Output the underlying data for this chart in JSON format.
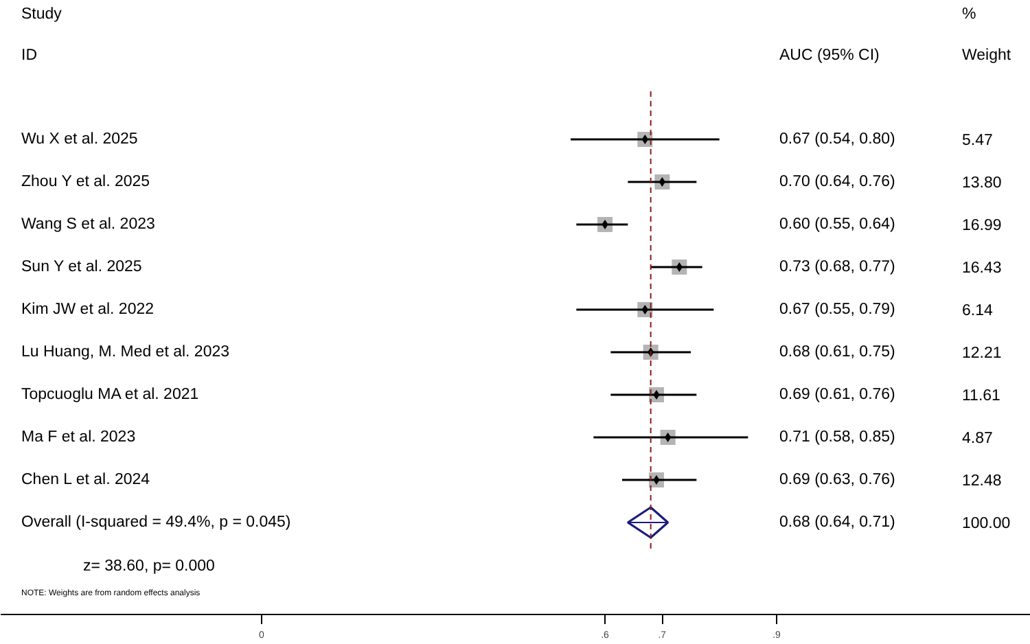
{
  "chart_data": {
    "type": "scatter",
    "orientation": "horizontal",
    "categories": [
      "Wu X et al. 2025",
      "Zhou Y et al. 2025",
      "Wang S et al. 2023",
      "Sun Y et al. 2025",
      "Kim JW  et al. 2022",
      "Lu Huang, M. Med et al. 2023",
      "Topcuoglu MA et al. 2021",
      "Ma F et al. 2023",
      "Chen L et al. 2024",
      "Overall  (I-squared = 49.4%, p = 0.045)"
    ],
    "series": [
      {
        "color": "#b4b4b4",
        "marker": "square",
        "values": [
          0.67,
          0.7,
          0.6,
          0.73,
          0.67,
          0.68,
          0.69,
          0.71,
          0.69,
          null
        ],
        "errors": [
          [
            0.54,
            0.8
          ],
          [
            0.64,
            0.76
          ],
          [
            0.55,
            0.64
          ],
          [
            0.68,
            0.77
          ],
          [
            0.55,
            0.79
          ],
          [
            0.61,
            0.75
          ],
          [
            0.61,
            0.76
          ],
          [
            0.58,
            0.85
          ],
          [
            0.63,
            0.76
          ],
          null
        ]
      },
      {
        "color": "#1a1a80",
        "marker": "diamond",
        "values": [
          null,
          null,
          null,
          null,
          null,
          null,
          null,
          null,
          null,
          0.68
        ],
        "errors": [
          null,
          null,
          null,
          null,
          null,
          null,
          null,
          null,
          null,
          [
            0.64,
            0.71
          ]
        ]
      }
    ],
    "xlim": [
      -0.456,
      1.344
    ],
    "xticks": [
      0,
      {
        "value": 0.6,
        "label": ".6"
      },
      {
        "value": 0.7,
        "label": ".7"
      },
      {
        "value": 0.9,
        "label": ".9"
      }
    ],
    "ref_lines": [
      {
        "axis": "x",
        "value": 0.68,
        "color": "#8b1a1a",
        "line_style": "dashed"
      }
    ],
    "annotations": [
      "Study",
      "ID",
      "AUC (95% CI)",
      "%",
      "Weight",
      "z= 38.60,  p= 0.000",
      "NOTE: Weights are from random effects analysis",
      "0.67 (0.54, 0.80)",
      "0.70 (0.64, 0.76)",
      "0.60 (0.55, 0.64)",
      "0.73 (0.68, 0.77)",
      "0.67 (0.55, 0.79)",
      "0.68 (0.61, 0.75)",
      "0.69 (0.61, 0.76)",
      "0.71 (0.58, 0.85)",
      "0.69 (0.63, 0.76)",
      "0.68 (0.64, 0.71)",
      "5.47",
      "13.80",
      "16.99",
      "16.43",
      "6.14",
      "12.21",
      "11.61",
      "4.87",
      "12.48",
      "100.00"
    ],
    "grid": false
  }
}
